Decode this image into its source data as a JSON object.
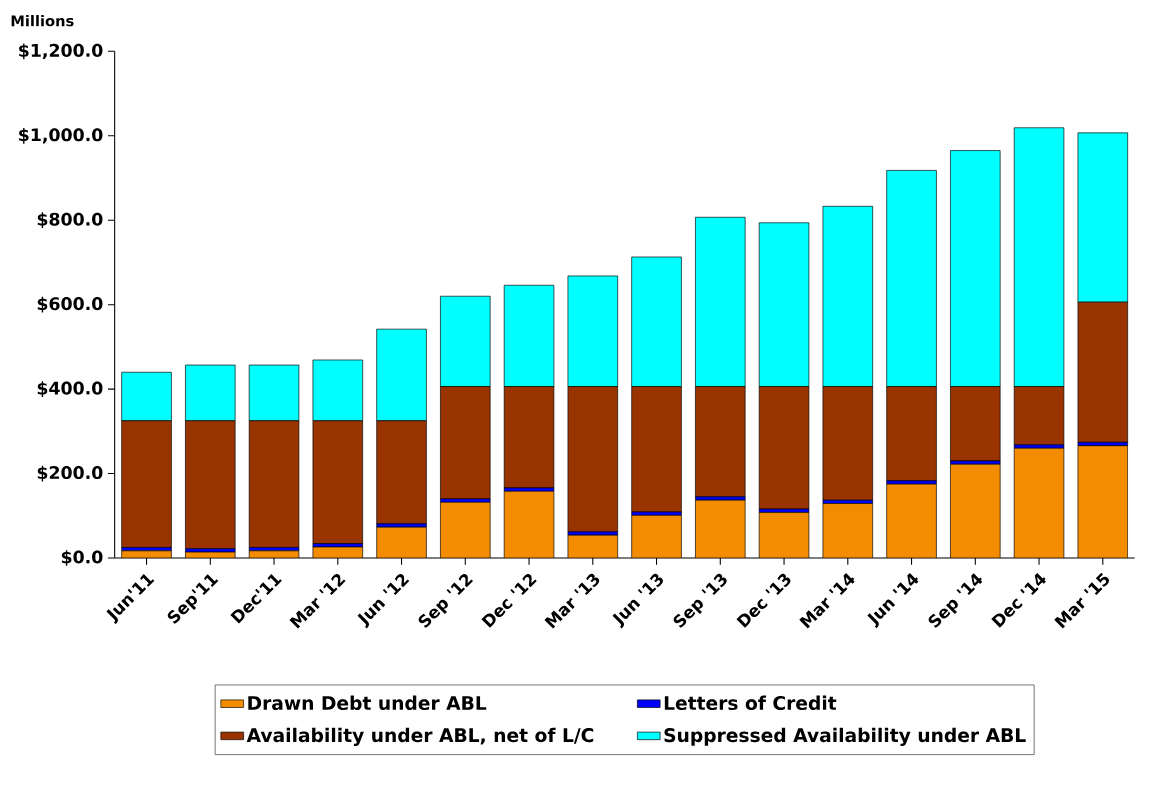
{
  "chart_data": {
    "type": "bar",
    "stacked": true,
    "ylabel": "Millions",
    "categories": [
      "Jun'11",
      "Sep'11",
      "Dec'11",
      "Mar '12",
      "Jun '12",
      "Sep '12",
      "Dec '12",
      "Mar '13",
      "Jun '13",
      "Sep '13",
      "Dec '13",
      "Mar '14",
      "Jun '14",
      "Sep '14",
      "Dec '14",
      "Mar '15"
    ],
    "series": [
      {
        "name": "Drawn Debt under ABL",
        "color": "#f48c00",
        "values": [
          17,
          14,
          17,
          26,
          73,
          132,
          158,
          54,
          101,
          137,
          108,
          129,
          175,
          222,
          260,
          266
        ]
      },
      {
        "name": "Letters of Credit",
        "color": "#0000ff",
        "values": [
          8,
          8,
          8,
          8,
          8,
          8,
          8,
          8,
          8,
          8,
          8,
          8,
          8,
          8,
          8,
          8
        ]
      },
      {
        "name": "Availability under ABL, net of L/C",
        "color": "#993300",
        "values": [
          300,
          303,
          300,
          291,
          244,
          266,
          240,
          344,
          297,
          261,
          290,
          269,
          223,
          176,
          138,
          332
        ]
      },
      {
        "name": "Suppressed Availability under ABL",
        "color": "#00ffff",
        "values": [
          115,
          132,
          132,
          144,
          217,
          214,
          240,
          262,
          307,
          401,
          388,
          427,
          512,
          559,
          613,
          401
        ]
      }
    ],
    "ylim": [
      0,
      1200
    ],
    "yticks": [
      {
        "value": 0,
        "label": "$0.0"
      },
      {
        "value": 200,
        "label": "$200.0"
      },
      {
        "value": 400,
        "label": "$400.0"
      },
      {
        "value": 600,
        "label": "$600.0"
      },
      {
        "value": 800,
        "label": "$800.0"
      },
      {
        "value": 1000,
        "label": "$1,000.0"
      },
      {
        "value": 1200,
        "label": "$1,200.0"
      }
    ],
    "legend": "bottom"
  }
}
